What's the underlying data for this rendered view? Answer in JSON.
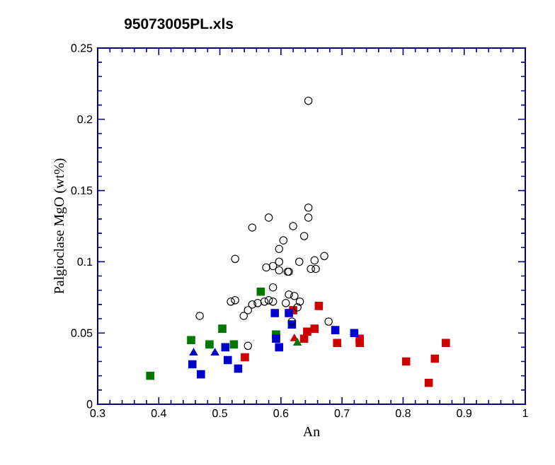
{
  "chart_data": {
    "type": "scatter",
    "title": "95073005PL.xls",
    "xlabel": "An",
    "ylabel": "Palgioclase MgO (wt%)",
    "xlim": [
      0.3,
      1
    ],
    "xticks": [
      0.3,
      0.4,
      0.5,
      0.6,
      0.7,
      0.8,
      0.9,
      1
    ],
    "ylim": [
      0,
      0.25
    ],
    "yticks": [
      0,
      0.05,
      0.1,
      0.15,
      0.2,
      0.25
    ],
    "grid": false,
    "series": [
      {
        "color": "#000000",
        "marker": "circle",
        "x": [
          0.645,
          0.645,
          0.645,
          0.553,
          0.58,
          0.62,
          0.638,
          0.604,
          0.597,
          0.671,
          0.655,
          0.657,
          0.525,
          0.576,
          0.587,
          0.597,
          0.597,
          0.611,
          0.467,
          0.518,
          0.525,
          0.539,
          0.546,
          0.553,
          0.562,
          0.573,
          0.58,
          0.587,
          0.587,
          0.546,
          0.613,
          0.608,
          0.613,
          0.622,
          0.631,
          0.627,
          0.618,
          0.678,
          0.63,
          0.649
        ],
        "values": [
          0.213,
          0.138,
          0.131,
          0.124,
          0.131,
          0.125,
          0.118,
          0.115,
          0.109,
          0.104,
          0.101,
          0.095,
          0.102,
          0.096,
          0.097,
          0.1,
          0.094,
          0.093,
          0.062,
          0.072,
          0.073,
          0.062,
          0.066,
          0.07,
          0.071,
          0.072,
          0.073,
          0.082,
          0.072,
          0.041,
          0.093,
          0.071,
          0.077,
          0.076,
          0.072,
          0.068,
          0.058,
          0.058,
          0.1,
          0.095
        ]
      },
      {
        "color": "#0000cc",
        "marker": "square",
        "x": [
          0.455,
          0.469,
          0.509,
          0.513,
          0.53,
          0.59,
          0.592,
          0.597,
          0.613,
          0.618,
          0.689,
          0.72
        ],
        "values": [
          0.028,
          0.021,
          0.04,
          0.031,
          0.025,
          0.064,
          0.046,
          0.04,
          0.064,
          0.056,
          0.052,
          0.05
        ]
      },
      {
        "color": "#0000cc",
        "marker": "triangle",
        "x": [
          0.457,
          0.492
        ],
        "values": [
          0.036,
          0.036
        ]
      },
      {
        "color": "#007700",
        "marker": "square",
        "x": [
          0.386,
          0.453,
          0.483,
          0.504,
          0.523,
          0.567,
          0.592
        ],
        "values": [
          0.02,
          0.045,
          0.042,
          0.053,
          0.042,
          0.079,
          0.049
        ]
      },
      {
        "color": "#007700",
        "marker": "triangle",
        "x": [
          0.627
        ],
        "values": [
          0.043
        ]
      },
      {
        "color": "#cc0000",
        "marker": "square",
        "x": [
          0.541,
          0.62,
          0.662,
          0.638,
          0.643,
          0.655,
          0.692,
          0.729,
          0.729,
          0.805,
          0.852,
          0.842,
          0.87
        ],
        "values": [
          0.033,
          0.066,
          0.069,
          0.046,
          0.051,
          0.053,
          0.043,
          0.046,
          0.043,
          0.03,
          0.032,
          0.015,
          0.043
        ]
      },
      {
        "color": "#cc0000",
        "marker": "triangle",
        "x": [
          0.622
        ],
        "values": [
          0.046
        ]
      }
    ]
  }
}
